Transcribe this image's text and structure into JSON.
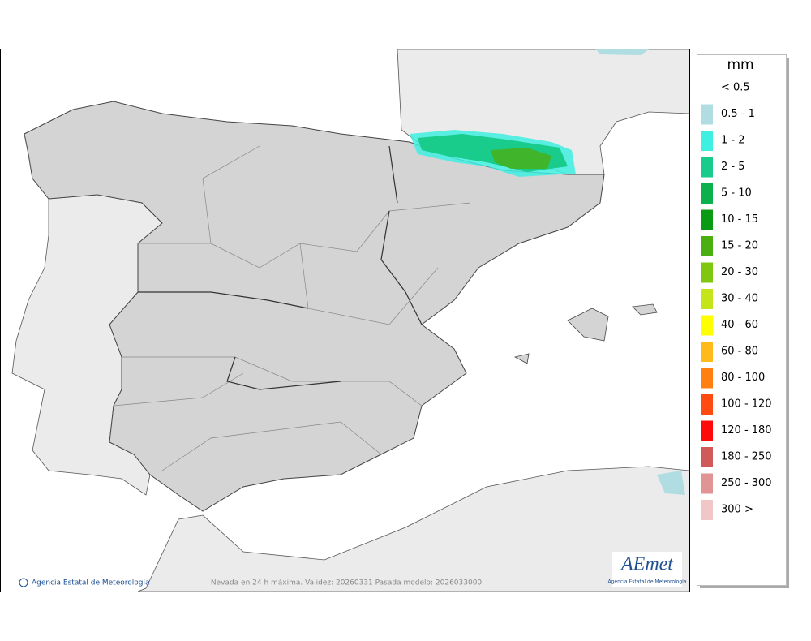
{
  "map": {
    "legend": {
      "title": "mm",
      "items": [
        {
          "label": "< 0.5",
          "color": "#ffffff"
        },
        {
          "label": "0.5 - 1",
          "color": "#b0dde2"
        },
        {
          "label": "1 - 2",
          "color": "#3ef0e0"
        },
        {
          "label": "2 - 5",
          "color": "#19cc8c"
        },
        {
          "label": "5 - 10",
          "color": "#0db14b"
        },
        {
          "label": "10 - 15",
          "color": "#0a9a13"
        },
        {
          "label": "15 - 20",
          "color": "#4aaf13"
        },
        {
          "label": "20 - 30",
          "color": "#80c810"
        },
        {
          "label": "30 - 40",
          "color": "#c6e41a"
        },
        {
          "label": "40 - 60",
          "color": "#ffff00"
        },
        {
          "label": "60 - 80",
          "color": "#ffbb1c"
        },
        {
          "label": "80 - 100",
          "color": "#ff8010"
        },
        {
          "label": "100 - 120",
          "color": "#ff4a12"
        },
        {
          "label": "120 - 180",
          "color": "#ff0a0a"
        },
        {
          "label": "180 - 250",
          "color": "#d05a5a"
        },
        {
          "label": "250 - 300",
          "color": "#e09494"
        },
        {
          "label": "300 >",
          "color": "#f0c6c6"
        }
      ]
    },
    "credit": "Agencia Estatal de Meteorología",
    "caption": "Nevada en 24 h máxima. Validez: 20260331 Pasada modelo: 2026033000",
    "logo": {
      "name": "AEmet",
      "subtitle": "Agencia Estatal de Meteorología"
    }
  }
}
